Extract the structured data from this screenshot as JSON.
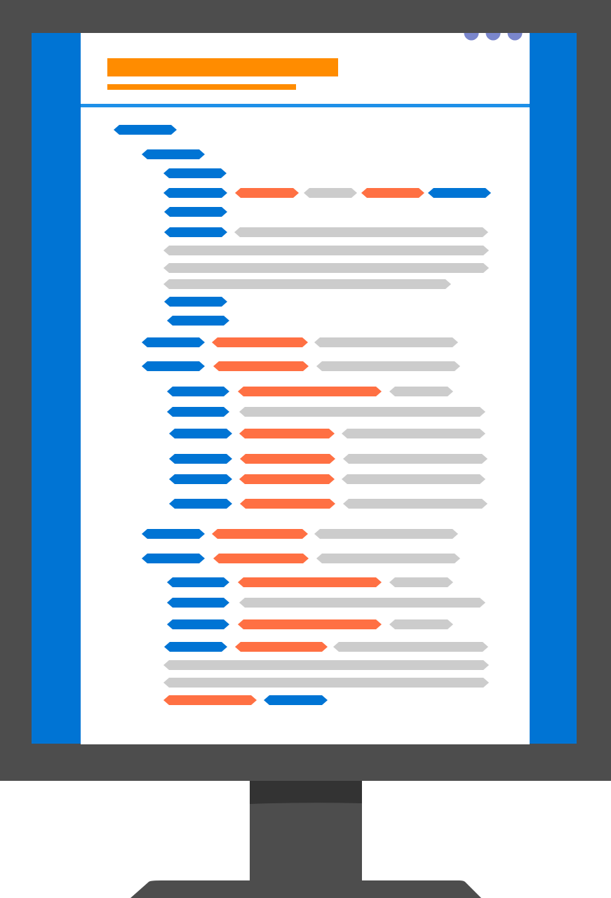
{
  "colors": {
    "bezel": "#4d4d4d",
    "stand_neck_top": "#333333",
    "screen_side": "#0074d4",
    "page": "#ffffff",
    "header_title_bar": "#ff8c00",
    "header_rule": "#1e90e8",
    "window_dots": "#7a86cc",
    "code_blue": "#0074d4",
    "code_orange": "#ff7043",
    "code_gray": "#cccccc"
  },
  "icons": {
    "monitor": "monitor-icon",
    "window_controls": "window-dots-icon",
    "code_lines": "code-token-shapes"
  }
}
